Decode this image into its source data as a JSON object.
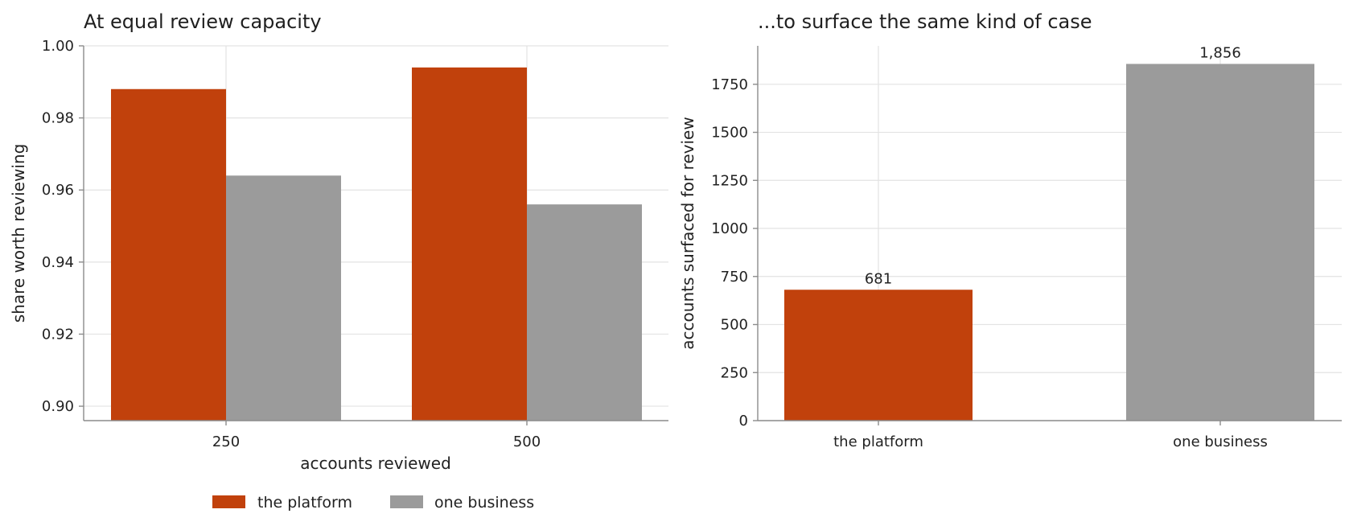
{
  "colors": {
    "platform": "#c1410c",
    "business": "#9b9b9b"
  },
  "legend": {
    "placement": "bottom-left",
    "items": [
      {
        "label": "the platform",
        "color": "#c1410c"
      },
      {
        "label": "one business",
        "color": "#9b9b9b"
      }
    ]
  },
  "chart_data": [
    {
      "type": "bar",
      "title": "At equal review capacity",
      "xlabel": "accounts reviewed",
      "ylabel": "share worth reviewing",
      "categories": [
        "250",
        "500"
      ],
      "series": [
        {
          "name": "the platform",
          "values": [
            0.988,
            0.994
          ]
        },
        {
          "name": "one business",
          "values": [
            0.964,
            0.956
          ]
        }
      ],
      "ylim": [
        0.896,
        1.0
      ],
      "yticks": [
        0.9,
        0.92,
        0.94,
        0.96,
        0.98,
        1.0
      ],
      "ytick_labels": [
        "0.90",
        "0.92",
        "0.94",
        "0.96",
        "0.98",
        "1.00"
      ],
      "grid": true
    },
    {
      "type": "bar",
      "title": "...to surface the same kind of case",
      "xlabel": "",
      "ylabel": "accounts surfaced for review",
      "categories": [
        "the platform",
        "one business"
      ],
      "values": [
        681,
        1856
      ],
      "data_labels": [
        "681",
        "1,856"
      ],
      "ylim": [
        0,
        1950
      ],
      "yticks": [
        0,
        250,
        500,
        750,
        1000,
        1250,
        1500,
        1750
      ],
      "ytick_labels": [
        "0",
        "250",
        "500",
        "750",
        "1000",
        "1250",
        "1500",
        "1750"
      ],
      "grid": true
    }
  ]
}
